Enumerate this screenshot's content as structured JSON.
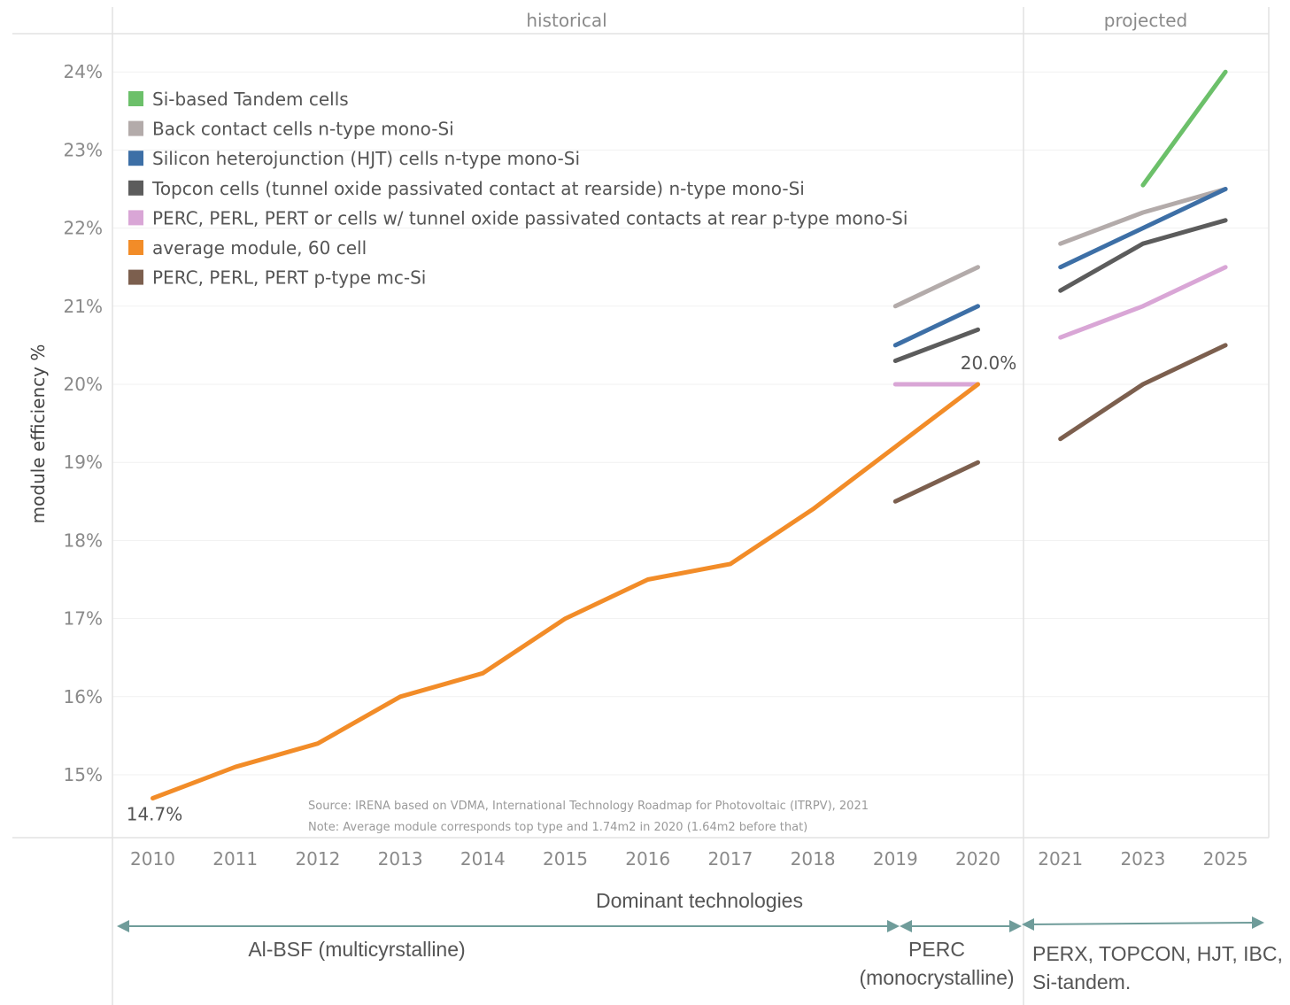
{
  "chart_data": {
    "type": "line",
    "ylabel": "module efficiency %",
    "ylim": [
      14.3,
      24.6
    ],
    "yticks": [
      "15%",
      "16%",
      "17%",
      "18%",
      "19%",
      "20%",
      "21%",
      "22%",
      "23%",
      "24%"
    ],
    "yticks_values": [
      15,
      16,
      17,
      18,
      19,
      20,
      21,
      22,
      23,
      24
    ],
    "categories": [
      "2010",
      "2011",
      "2012",
      "2013",
      "2014",
      "2015",
      "2016",
      "2017",
      "2018",
      "2019",
      "2020",
      "2021",
      "2023",
      "2025"
    ],
    "panels": [
      {
        "label": "historical",
        "categories": [
          "2010",
          "2011",
          "2012",
          "2013",
          "2014",
          "2015",
          "2016",
          "2017",
          "2018",
          "2019",
          "2020"
        ]
      },
      {
        "label": "projected",
        "categories": [
          "2021",
          "2023",
          "2025"
        ]
      }
    ],
    "grid": true,
    "legend_position": "top-left",
    "series": [
      {
        "name": "Si-based Tandem cells",
        "color": "#6cc06a",
        "points": [
          {
            "x": "2023",
            "y": 22.55
          },
          {
            "x": "2025",
            "y": 24.0
          }
        ]
      },
      {
        "name": "Back contact cells n-type mono-Si",
        "color": "#b3abaa",
        "points": [
          {
            "x": "2019",
            "y": 21.0
          },
          {
            "x": "2020",
            "y": 21.5
          },
          {
            "x": "2021",
            "y": 21.8
          },
          {
            "x": "2023",
            "y": 22.2
          },
          {
            "x": "2025",
            "y": 22.5
          }
        ]
      },
      {
        "name": "Silicon heterojunction (HJT) cells n-type mono-Si",
        "color": "#3d6fa6",
        "points": [
          {
            "x": "2019",
            "y": 20.5
          },
          {
            "x": "2020",
            "y": 21.0
          },
          {
            "x": "2021",
            "y": 21.5
          },
          {
            "x": "2023",
            "y": 22.0
          },
          {
            "x": "2025",
            "y": 22.5
          }
        ]
      },
      {
        "name": "Topcon cells (tunnel oxide passivated contact at rearside) n-type mono-Si",
        "color": "#5c5c5c",
        "points": [
          {
            "x": "2019",
            "y": 20.3
          },
          {
            "x": "2020",
            "y": 20.7
          },
          {
            "x": "2021",
            "y": 21.2
          },
          {
            "x": "2023",
            "y": 21.8
          },
          {
            "x": "2025",
            "y": 22.1
          }
        ]
      },
      {
        "name": "PERC, PERL, PERT or cells w/ tunnel oxide passivated contacts at rear p-type mono-Si",
        "color": "#d9a6d6",
        "points": [
          {
            "x": "2019",
            "y": 20.0
          },
          {
            "x": "2020",
            "y": 20.0
          },
          {
            "x": "2021",
            "y": 20.6
          },
          {
            "x": "2023",
            "y": 21.0
          },
          {
            "x": "2025",
            "y": 21.5
          }
        ]
      },
      {
        "name": "average module, 60 cell",
        "color": "#f28c28",
        "points": [
          {
            "x": "2010",
            "y": 14.7
          },
          {
            "x": "2011",
            "y": 15.1
          },
          {
            "x": "2012",
            "y": 15.4
          },
          {
            "x": "2013",
            "y": 16.0
          },
          {
            "x": "2014",
            "y": 16.3
          },
          {
            "x": "2015",
            "y": 17.0
          },
          {
            "x": "2016",
            "y": 17.5
          },
          {
            "x": "2017",
            "y": 17.7
          },
          {
            "x": "2018",
            "y": 18.4
          },
          {
            "x": "2019",
            "y": 19.2
          },
          {
            "x": "2020",
            "y": 20.0
          }
        ]
      },
      {
        "name": "PERC, PERL, PERT p-type mc-Si",
        "color": "#7c5f4e",
        "points": [
          {
            "x": "2019",
            "y": 18.5
          },
          {
            "x": "2020",
            "y": 19.0
          },
          {
            "x": "2021",
            "y": 19.3
          },
          {
            "x": "2023",
            "y": 20.0
          },
          {
            "x": "2025",
            "y": 20.5
          }
        ]
      }
    ],
    "annotations": [
      {
        "text": "14.7%",
        "x": "2010",
        "y": 14.7
      },
      {
        "text": "20.0%",
        "x": "2020",
        "y": 20.0
      }
    ],
    "source": "Source: IRENA based on VDMA, International Technology Roadmap for Photovoltaic (ITRPV), 2021",
    "note": "Note: Average module corresponds top type and 1.74m2 in 2020 (1.64m2 before that)"
  },
  "technologies": {
    "title": "Dominant technologies",
    "eras": [
      {
        "lines": [
          "Al-BSF (multicyrstalline)"
        ]
      },
      {
        "lines": [
          "PERC",
          "(monocrystalline)"
        ]
      },
      {
        "lines": [
          "PERX, TOPCON, HJT, IBC,",
          "Si-tandem."
        ]
      }
    ],
    "arrow_color": "#6f9c9a"
  }
}
